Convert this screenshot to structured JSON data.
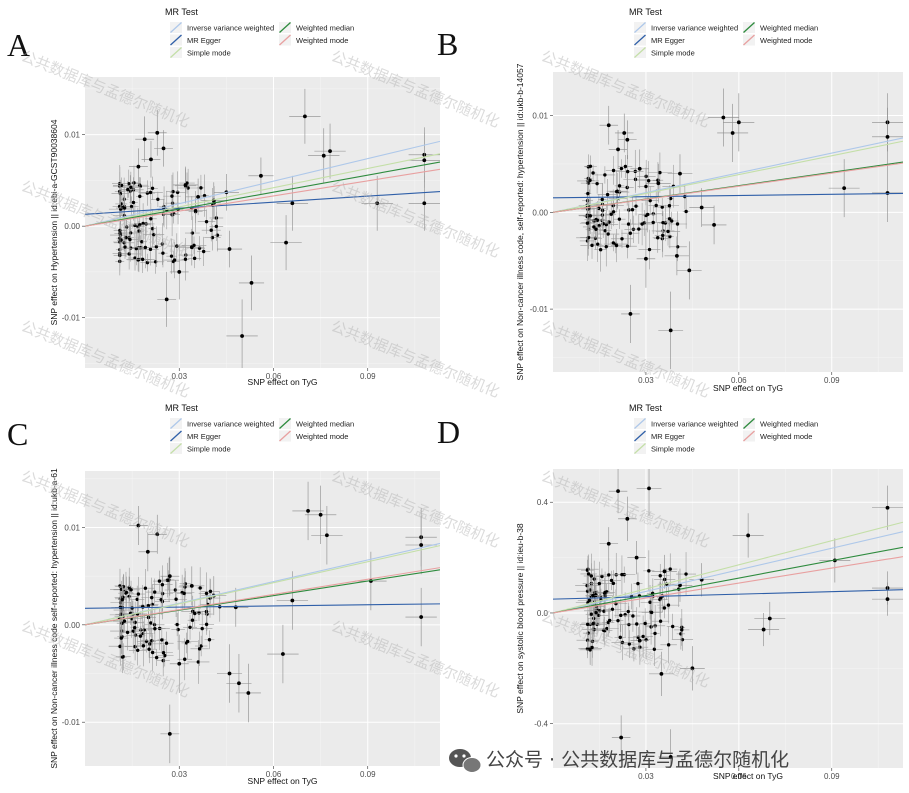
{
  "watermark": {
    "diagonal_text": "公共数据库与孟德尔随机化",
    "footer_text": "公众号 · 公共数据库与孟德尔随机化",
    "icon": "wechat-icon"
  },
  "legend": {
    "title": "MR Test",
    "entries": [
      {
        "name": "Inverse variance weighted",
        "color": "#aec8ea"
      },
      {
        "name": "MR Egger",
        "color": "#2f5fa8"
      },
      {
        "name": "Simple mode",
        "color": "#c4dfa8"
      },
      {
        "name": "Weighted median",
        "color": "#2e8b3e"
      },
      {
        "name": "Weighted mode",
        "color": "#e8a0a0"
      }
    ]
  },
  "chart_data": [
    {
      "type": "scatter",
      "panel": "A",
      "xlabel": "SNP effect on TyG",
      "ylabel": "SNP effect on Hypertension || id:ebi-a-GCST90038604",
      "xlim": [
        0.0,
        0.113
      ],
      "ylim": [
        -0.0155,
        0.0163
      ],
      "xticks": [
        0.03,
        0.06,
        0.09
      ],
      "xtick_labels": [
        "0.03",
        "0.06",
        "0.09"
      ],
      "yticks": [
        0.01,
        0.0,
        -0.01
      ],
      "ytick_labels": [
        "0.01",
        "0.00",
        "-0.01"
      ],
      "lines": [
        {
          "method": "Inverse variance weighted",
          "slope": 0.082,
          "intercept": 0
        },
        {
          "method": "MR Egger",
          "slope": 0.022,
          "intercept": 0.0013
        },
        {
          "method": "Simple mode",
          "slope": 0.07,
          "intercept": 0
        },
        {
          "method": "Weighted median",
          "slope": 0.062,
          "intercept": 0
        },
        {
          "method": "Weighted mode",
          "slope": 0.055,
          "intercept": 0
        }
      ],
      "points": [
        {
          "x": 0.019,
          "y": 0.0095,
          "xe": 0.003,
          "ye": 0.0025
        },
        {
          "x": 0.023,
          "y": 0.0102,
          "xe": 0.003,
          "ye": 0.0025
        },
        {
          "x": 0.025,
          "y": 0.0085,
          "xe": 0.003,
          "ye": 0.002
        },
        {
          "x": 0.021,
          "y": 0.0073,
          "xe": 0.003,
          "ye": 0.002
        },
        {
          "x": 0.017,
          "y": 0.0065,
          "xe": 0.003,
          "ye": 0.002
        },
        {
          "x": 0.032,
          "y": 0.0045,
          "xe": 0.004,
          "ye": 0.002
        },
        {
          "x": 0.036,
          "y": 0.0032,
          "xe": 0.004,
          "ye": 0.002
        },
        {
          "x": 0.041,
          "y": 0.0028,
          "xe": 0.004,
          "ye": 0.002
        },
        {
          "x": 0.045,
          "y": 0.0037,
          "xe": 0.004,
          "ye": 0.002
        },
        {
          "x": 0.056,
          "y": 0.0055,
          "xe": 0.004,
          "ye": 0.002
        },
        {
          "x": 0.07,
          "y": 0.012,
          "xe": 0.005,
          "ye": 0.003
        },
        {
          "x": 0.076,
          "y": 0.0077,
          "xe": 0.005,
          "ye": 0.003
        },
        {
          "x": 0.078,
          "y": 0.0082,
          "xe": 0.005,
          "ye": 0.003
        },
        {
          "x": 0.066,
          "y": 0.0025,
          "xe": 0.005,
          "ye": 0.003
        },
        {
          "x": 0.064,
          "y": -0.0018,
          "xe": 0.005,
          "ye": 0.003
        },
        {
          "x": 0.053,
          "y": -0.0062,
          "xe": 0.004,
          "ye": 0.003
        },
        {
          "x": 0.05,
          "y": -0.012,
          "xe": 0.005,
          "ye": 0.004
        },
        {
          "x": 0.026,
          "y": -0.008,
          "xe": 0.003,
          "ye": 0.003
        },
        {
          "x": 0.03,
          "y": -0.005,
          "xe": 0.003,
          "ye": 0.003
        },
        {
          "x": 0.034,
          "y": -0.0023,
          "xe": 0.004,
          "ye": 0.002
        },
        {
          "x": 0.046,
          "y": -0.0025,
          "xe": 0.004,
          "ye": 0.002
        },
        {
          "x": 0.093,
          "y": 0.0025,
          "xe": 0.005,
          "ye": 0.003
        },
        {
          "x": 0.108,
          "y": 0.0078,
          "xe": 0.005,
          "ye": 0.003
        },
        {
          "x": 0.108,
          "y": 0.0072,
          "xe": 0.005,
          "ye": 0.003
        },
        {
          "x": 0.108,
          "y": 0.0025,
          "xe": 0.005,
          "ye": 0.003
        }
      ]
    },
    {
      "type": "scatter",
      "panel": "B",
      "xlabel": "SNP effect on TyG",
      "ylabel": "SNP effect on Non-cancer illness code, self-reported: hypertension || id:ukb-b-14057",
      "xlim": [
        0.0,
        0.113
      ],
      "ylim": [
        -0.0165,
        0.0145
      ],
      "xticks": [
        0.03,
        0.06,
        0.09
      ],
      "xtick_labels": [
        "0.03",
        "0.06",
        "0.09"
      ],
      "yticks": [
        0.01,
        0.0,
        -0.01
      ],
      "ytick_labels": [
        "0.01",
        "0.00",
        "-0.01"
      ],
      "lines": [
        {
          "method": "Inverse variance weighted",
          "slope": 0.068,
          "intercept": 0
        },
        {
          "method": "MR Egger",
          "slope": 0.004,
          "intercept": 0.0015
        },
        {
          "method": "Simple mode",
          "slope": 0.065,
          "intercept": 0
        },
        {
          "method": "Weighted median",
          "slope": 0.046,
          "intercept": 0
        },
        {
          "method": "Weighted mode",
          "slope": 0.045,
          "intercept": 0
        }
      ],
      "points": [
        {
          "x": 0.018,
          "y": 0.009,
          "xe": 0.003,
          "ye": 0.002
        },
        {
          "x": 0.023,
          "y": 0.0082,
          "xe": 0.003,
          "ye": 0.002
        },
        {
          "x": 0.024,
          "y": 0.0075,
          "xe": 0.003,
          "ye": 0.002
        },
        {
          "x": 0.021,
          "y": 0.0065,
          "xe": 0.003,
          "ye": 0.002
        },
        {
          "x": 0.028,
          "y": 0.0045,
          "xe": 0.003,
          "ye": 0.002
        },
        {
          "x": 0.034,
          "y": 0.003,
          "xe": 0.004,
          "ye": 0.002
        },
        {
          "x": 0.041,
          "y": 0.004,
          "xe": 0.004,
          "ye": 0.002
        },
        {
          "x": 0.055,
          "y": 0.0098,
          "xe": 0.005,
          "ye": 0.003
        },
        {
          "x": 0.058,
          "y": 0.0082,
          "xe": 0.005,
          "ye": 0.003
        },
        {
          "x": 0.06,
          "y": 0.0093,
          "xe": 0.005,
          "ye": 0.003
        },
        {
          "x": 0.048,
          "y": 0.0005,
          "xe": 0.004,
          "ye": 0.002
        },
        {
          "x": 0.052,
          "y": -0.0013,
          "xe": 0.004,
          "ye": 0.002
        },
        {
          "x": 0.04,
          "y": -0.0045,
          "xe": 0.004,
          "ye": 0.002
        },
        {
          "x": 0.044,
          "y": -0.006,
          "xe": 0.004,
          "ye": 0.003
        },
        {
          "x": 0.025,
          "y": -0.0105,
          "xe": 0.003,
          "ye": 0.003
        },
        {
          "x": 0.03,
          "y": -0.0048,
          "xe": 0.003,
          "ye": 0.003
        },
        {
          "x": 0.038,
          "y": -0.0122,
          "xe": 0.004,
          "ye": 0.004
        },
        {
          "x": 0.094,
          "y": 0.0025,
          "xe": 0.005,
          "ye": 0.003
        },
        {
          "x": 0.108,
          "y": 0.0093,
          "xe": 0.005,
          "ye": 0.003
        },
        {
          "x": 0.108,
          "y": 0.0078,
          "xe": 0.005,
          "ye": 0.003
        },
        {
          "x": 0.108,
          "y": 0.002,
          "xe": 0.005,
          "ye": 0.003
        }
      ]
    },
    {
      "type": "scatter",
      "panel": "C",
      "xlabel": "SNP effect on TyG",
      "ylabel": "SNP effect on Non-cancer illness code  self-reported: hypertension || id:ukb-a-61",
      "xlim": [
        0.0,
        0.113
      ],
      "ylim": [
        -0.0145,
        0.0158
      ],
      "xticks": [
        0.03,
        0.06,
        0.09
      ],
      "xtick_labels": [
        "0.03",
        "0.06",
        "0.09"
      ],
      "yticks": [
        0.01,
        0.0,
        -0.01
      ],
      "ytick_labels": [
        "0.01",
        "0.00",
        "-0.01"
      ],
      "lines": [
        {
          "method": "Inverse variance weighted",
          "slope": 0.074,
          "intercept": 0
        },
        {
          "method": "MR Egger",
          "slope": 0.004,
          "intercept": 0.0017
        },
        {
          "method": "Simple mode",
          "slope": 0.072,
          "intercept": 0
        },
        {
          "method": "Weighted median",
          "slope": 0.05,
          "intercept": 0
        },
        {
          "method": "Weighted mode",
          "slope": 0.052,
          "intercept": 0
        }
      ],
      "points": [
        {
          "x": 0.017,
          "y": 0.0102,
          "xe": 0.003,
          "ye": 0.002
        },
        {
          "x": 0.023,
          "y": 0.0093,
          "xe": 0.003,
          "ye": 0.002
        },
        {
          "x": 0.02,
          "y": 0.0075,
          "xe": 0.003,
          "ye": 0.002
        },
        {
          "x": 0.027,
          "y": 0.005,
          "xe": 0.003,
          "ye": 0.002
        },
        {
          "x": 0.034,
          "y": 0.004,
          "xe": 0.004,
          "ye": 0.002
        },
        {
          "x": 0.041,
          "y": 0.003,
          "xe": 0.004,
          "ye": 0.002
        },
        {
          "x": 0.048,
          "y": 0.0018,
          "xe": 0.004,
          "ye": 0.002
        },
        {
          "x": 0.071,
          "y": 0.0117,
          "xe": 0.005,
          "ye": 0.003
        },
        {
          "x": 0.075,
          "y": 0.0113,
          "xe": 0.005,
          "ye": 0.003
        },
        {
          "x": 0.077,
          "y": 0.0092,
          "xe": 0.005,
          "ye": 0.003
        },
        {
          "x": 0.066,
          "y": 0.0025,
          "xe": 0.005,
          "ye": 0.003
        },
        {
          "x": 0.063,
          "y": -0.003,
          "xe": 0.005,
          "ye": 0.003
        },
        {
          "x": 0.046,
          "y": -0.005,
          "xe": 0.004,
          "ye": 0.003
        },
        {
          "x": 0.049,
          "y": -0.006,
          "xe": 0.004,
          "ye": 0.003
        },
        {
          "x": 0.052,
          "y": -0.007,
          "xe": 0.004,
          "ye": 0.003
        },
        {
          "x": 0.027,
          "y": -0.0112,
          "xe": 0.003,
          "ye": 0.003
        },
        {
          "x": 0.03,
          "y": -0.004,
          "xe": 0.003,
          "ye": 0.003
        },
        {
          "x": 0.091,
          "y": 0.0045,
          "xe": 0.005,
          "ye": 0.003
        },
        {
          "x": 0.107,
          "y": 0.009,
          "xe": 0.005,
          "ye": 0.003
        },
        {
          "x": 0.107,
          "y": 0.0082,
          "xe": 0.005,
          "ye": 0.003
        },
        {
          "x": 0.107,
          "y": 0.0008,
          "xe": 0.005,
          "ye": 0.003
        }
      ]
    },
    {
      "type": "scatter",
      "panel": "D",
      "xlabel": "SNP effect on TyG",
      "ylabel": "SNP effect on systolic blood pressure || id:ieu-b-38",
      "xlim": [
        0.0,
        0.113
      ],
      "ylim": [
        -0.56,
        0.52
      ],
      "xticks": [
        0.03,
        0.06,
        0.09
      ],
      "xtick_labels": [
        "0.03",
        "0.06",
        "0.09"
      ],
      "yticks": [
        0.4,
        0.0,
        -0.4
      ],
      "ytick_labels": [
        "0.4",
        "0.0",
        "-0.4"
      ],
      "lines": [
        {
          "method": "Inverse variance weighted",
          "slope": 2.6,
          "intercept": 0
        },
        {
          "method": "MR Egger",
          "slope": 0.3,
          "intercept": 0.05
        },
        {
          "method": "Simple mode",
          "slope": 2.9,
          "intercept": 0
        },
        {
          "method": "Weighted median",
          "slope": 2.1,
          "intercept": 0
        },
        {
          "method": "Weighted mode",
          "slope": 1.8,
          "intercept": 0
        }
      ],
      "points": [
        {
          "x": 0.021,
          "y": 0.44,
          "xe": 0.003,
          "ye": 0.08
        },
        {
          "x": 0.024,
          "y": 0.34,
          "xe": 0.003,
          "ye": 0.08
        },
        {
          "x": 0.018,
          "y": 0.25,
          "xe": 0.003,
          "ye": 0.06
        },
        {
          "x": 0.027,
          "y": 0.2,
          "xe": 0.003,
          "ye": 0.06
        },
        {
          "x": 0.031,
          "y": 0.45,
          "xe": 0.004,
          "ye": 0.1
        },
        {
          "x": 0.036,
          "y": 0.15,
          "xe": 0.004,
          "ye": 0.06
        },
        {
          "x": 0.041,
          "y": 0.1,
          "xe": 0.004,
          "ye": 0.06
        },
        {
          "x": 0.048,
          "y": 0.12,
          "xe": 0.004,
          "ye": 0.06
        },
        {
          "x": 0.063,
          "y": 0.28,
          "xe": 0.005,
          "ye": 0.08
        },
        {
          "x": 0.07,
          "y": -0.02,
          "xe": 0.005,
          "ye": 0.06
        },
        {
          "x": 0.068,
          "y": -0.06,
          "xe": 0.005,
          "ye": 0.06
        },
        {
          "x": 0.045,
          "y": -0.2,
          "xe": 0.004,
          "ye": 0.08
        },
        {
          "x": 0.035,
          "y": -0.22,
          "xe": 0.004,
          "ye": 0.08
        },
        {
          "x": 0.028,
          "y": -0.1,
          "xe": 0.003,
          "ye": 0.06
        },
        {
          "x": 0.022,
          "y": -0.45,
          "xe": 0.003,
          "ye": 0.08
        },
        {
          "x": 0.038,
          "y": -0.52,
          "xe": 0.004,
          "ye": 0.1
        },
        {
          "x": 0.091,
          "y": 0.19,
          "xe": 0.005,
          "ye": 0.08
        },
        {
          "x": 0.108,
          "y": 0.38,
          "xe": 0.005,
          "ye": 0.08
        },
        {
          "x": 0.108,
          "y": 0.09,
          "xe": 0.005,
          "ye": 0.06
        },
        {
          "x": 0.108,
          "y": 0.05,
          "xe": 0.005,
          "ye": 0.06
        }
      ]
    }
  ]
}
